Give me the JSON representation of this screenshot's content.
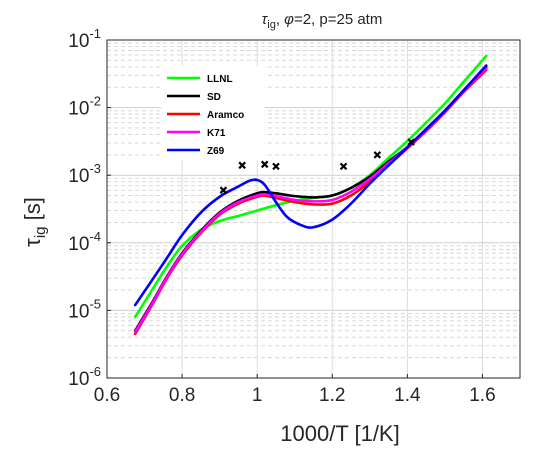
{
  "chart_data": {
    "type": "line",
    "title": {
      "tau": "τ",
      "tau_sub": "ig",
      "sep": ", ",
      "phi": "φ",
      "rest": "=2, p=25 atm"
    },
    "xlabel": "1000/T [1/K]",
    "ylabel": {
      "main": "τ",
      "sub": "ig",
      "unit": " [s]"
    },
    "xlim": [
      0.6,
      1.7
    ],
    "ylim": [
      1e-06,
      0.1
    ],
    "yscale": "log",
    "grid": true,
    "minor_grid_y": true,
    "legend_position": "top-left",
    "x_ticks": [
      0.6,
      0.8,
      1.0,
      1.2,
      1.4,
      1.6
    ],
    "x_tick_labels": [
      "0.6",
      "0.8",
      "1",
      "1.2",
      "1.4",
      "1.6"
    ],
    "y_ticks": [
      1e-06,
      1e-05,
      0.0001,
      0.001,
      0.01,
      0.1
    ],
    "y_tick_labels": [
      {
        "base": "10",
        "exp": "-6"
      },
      {
        "base": "10",
        "exp": "-5"
      },
      {
        "base": "10",
        "exp": "-4"
      },
      {
        "base": "10",
        "exp": "-3"
      },
      {
        "base": "10",
        "exp": "-2"
      },
      {
        "base": "10",
        "exp": "-1"
      }
    ],
    "series": [
      {
        "name": "LLNL",
        "color": "#00ff00",
        "points": [
          [
            0.675,
            8e-06
          ],
          [
            0.72,
            2e-05
          ],
          [
            0.76,
            4.5e-05
          ],
          [
            0.8,
            9e-05
          ],
          [
            0.85,
            0.000155
          ],
          [
            0.9,
            0.00021
          ],
          [
            0.95,
            0.00025
          ],
          [
            1.0,
            0.0003
          ],
          [
            1.05,
            0.00036
          ],
          [
            1.1,
            0.00042
          ],
          [
            1.15,
            0.00046
          ],
          [
            1.2,
            0.0005
          ],
          [
            1.25,
            0.00065
          ],
          [
            1.3,
            0.001
          ],
          [
            1.35,
            0.0018
          ],
          [
            1.4,
            0.0032
          ],
          [
            1.45,
            0.006
          ],
          [
            1.5,
            0.0115
          ],
          [
            1.55,
            0.024
          ],
          [
            1.61,
            0.058
          ]
        ]
      },
      {
        "name": "SD",
        "color": "#000000",
        "points": [
          [
            0.675,
            5e-06
          ],
          [
            0.72,
            1.3e-05
          ],
          [
            0.76,
            3.2e-05
          ],
          [
            0.8,
            7e-05
          ],
          [
            0.85,
            0.00015
          ],
          [
            0.9,
            0.00028
          ],
          [
            0.95,
            0.00042
          ],
          [
            1.0,
            0.00054
          ],
          [
            1.02,
            0.00056
          ],
          [
            1.05,
            0.00054
          ],
          [
            1.1,
            0.00049
          ],
          [
            1.15,
            0.00047
          ],
          [
            1.2,
            0.0005
          ],
          [
            1.25,
            0.00065
          ],
          [
            1.3,
            0.00095
          ],
          [
            1.35,
            0.0016
          ],
          [
            1.4,
            0.0026
          ],
          [
            1.45,
            0.0048
          ],
          [
            1.5,
            0.009
          ],
          [
            1.55,
            0.018
          ],
          [
            1.61,
            0.04
          ]
        ]
      },
      {
        "name": "Aramco",
        "color": "#ff0000",
        "points": [
          [
            0.675,
            4.5e-06
          ],
          [
            0.72,
            1.2e-05
          ],
          [
            0.76,
            3e-05
          ],
          [
            0.8,
            6.5e-05
          ],
          [
            0.85,
            0.00014
          ],
          [
            0.9,
            0.00026
          ],
          [
            0.95,
            0.00038
          ],
          [
            1.0,
            0.00048
          ],
          [
            1.02,
            0.0005
          ],
          [
            1.05,
            0.00046
          ],
          [
            1.1,
            0.0004
          ],
          [
            1.15,
            0.00037
          ],
          [
            1.2,
            0.00038
          ],
          [
            1.25,
            0.0005
          ],
          [
            1.3,
            0.0008
          ],
          [
            1.35,
            0.0014
          ],
          [
            1.4,
            0.0025
          ],
          [
            1.45,
            0.0045
          ],
          [
            1.5,
            0.0085
          ],
          [
            1.55,
            0.017
          ],
          [
            1.61,
            0.036
          ]
        ]
      },
      {
        "name": "K71",
        "color": "#ff00ff",
        "points": [
          [
            0.675,
            4.8e-06
          ],
          [
            0.72,
            1.25e-05
          ],
          [
            0.76,
            3.1e-05
          ],
          [
            0.8,
            6.8e-05
          ],
          [
            0.85,
            0.000145
          ],
          [
            0.9,
            0.00027
          ],
          [
            0.95,
            0.0004
          ],
          [
            1.0,
            0.0005
          ],
          [
            1.02,
            0.00052
          ],
          [
            1.05,
            0.00049
          ],
          [
            1.1,
            0.00043
          ],
          [
            1.15,
            0.00041
          ],
          [
            1.2,
            0.00043
          ],
          [
            1.25,
            0.00057
          ],
          [
            1.3,
            0.00088
          ],
          [
            1.35,
            0.0015
          ],
          [
            1.4,
            0.0026
          ],
          [
            1.45,
            0.0047
          ],
          [
            1.5,
            0.0088
          ],
          [
            1.55,
            0.0175
          ],
          [
            1.61,
            0.038
          ]
        ]
      },
      {
        "name": "Z69",
        "color": "#0000ff",
        "points": [
          [
            0.675,
            1.2e-05
          ],
          [
            0.72,
            2.8e-05
          ],
          [
            0.76,
            6e-05
          ],
          [
            0.8,
            0.00013
          ],
          [
            0.85,
            0.00028
          ],
          [
            0.9,
            0.00048
          ],
          [
            0.95,
            0.00068
          ],
          [
            0.98,
            0.00083
          ],
          [
            1.0,
            0.00085
          ],
          [
            1.02,
            0.00072
          ],
          [
            1.05,
            0.0004
          ],
          [
            1.08,
            0.00024
          ],
          [
            1.12,
            0.00018
          ],
          [
            1.15,
            0.00017
          ],
          [
            1.2,
            0.00022
          ],
          [
            1.25,
            0.00038
          ],
          [
            1.3,
            0.00075
          ],
          [
            1.35,
            0.0014
          ],
          [
            1.4,
            0.0026
          ],
          [
            1.45,
            0.0048
          ],
          [
            1.5,
            0.009
          ],
          [
            1.55,
            0.018
          ],
          [
            1.61,
            0.042
          ]
        ]
      }
    ],
    "markers": {
      "symbol": "x",
      "color": "#000000",
      "points": [
        [
          0.91,
          0.0006
        ],
        [
          0.96,
          0.0014
        ],
        [
          1.02,
          0.00145
        ],
        [
          1.05,
          0.00135
        ],
        [
          1.23,
          0.00135
        ],
        [
          1.32,
          0.002
        ],
        [
          1.41,
          0.0031
        ]
      ]
    }
  }
}
